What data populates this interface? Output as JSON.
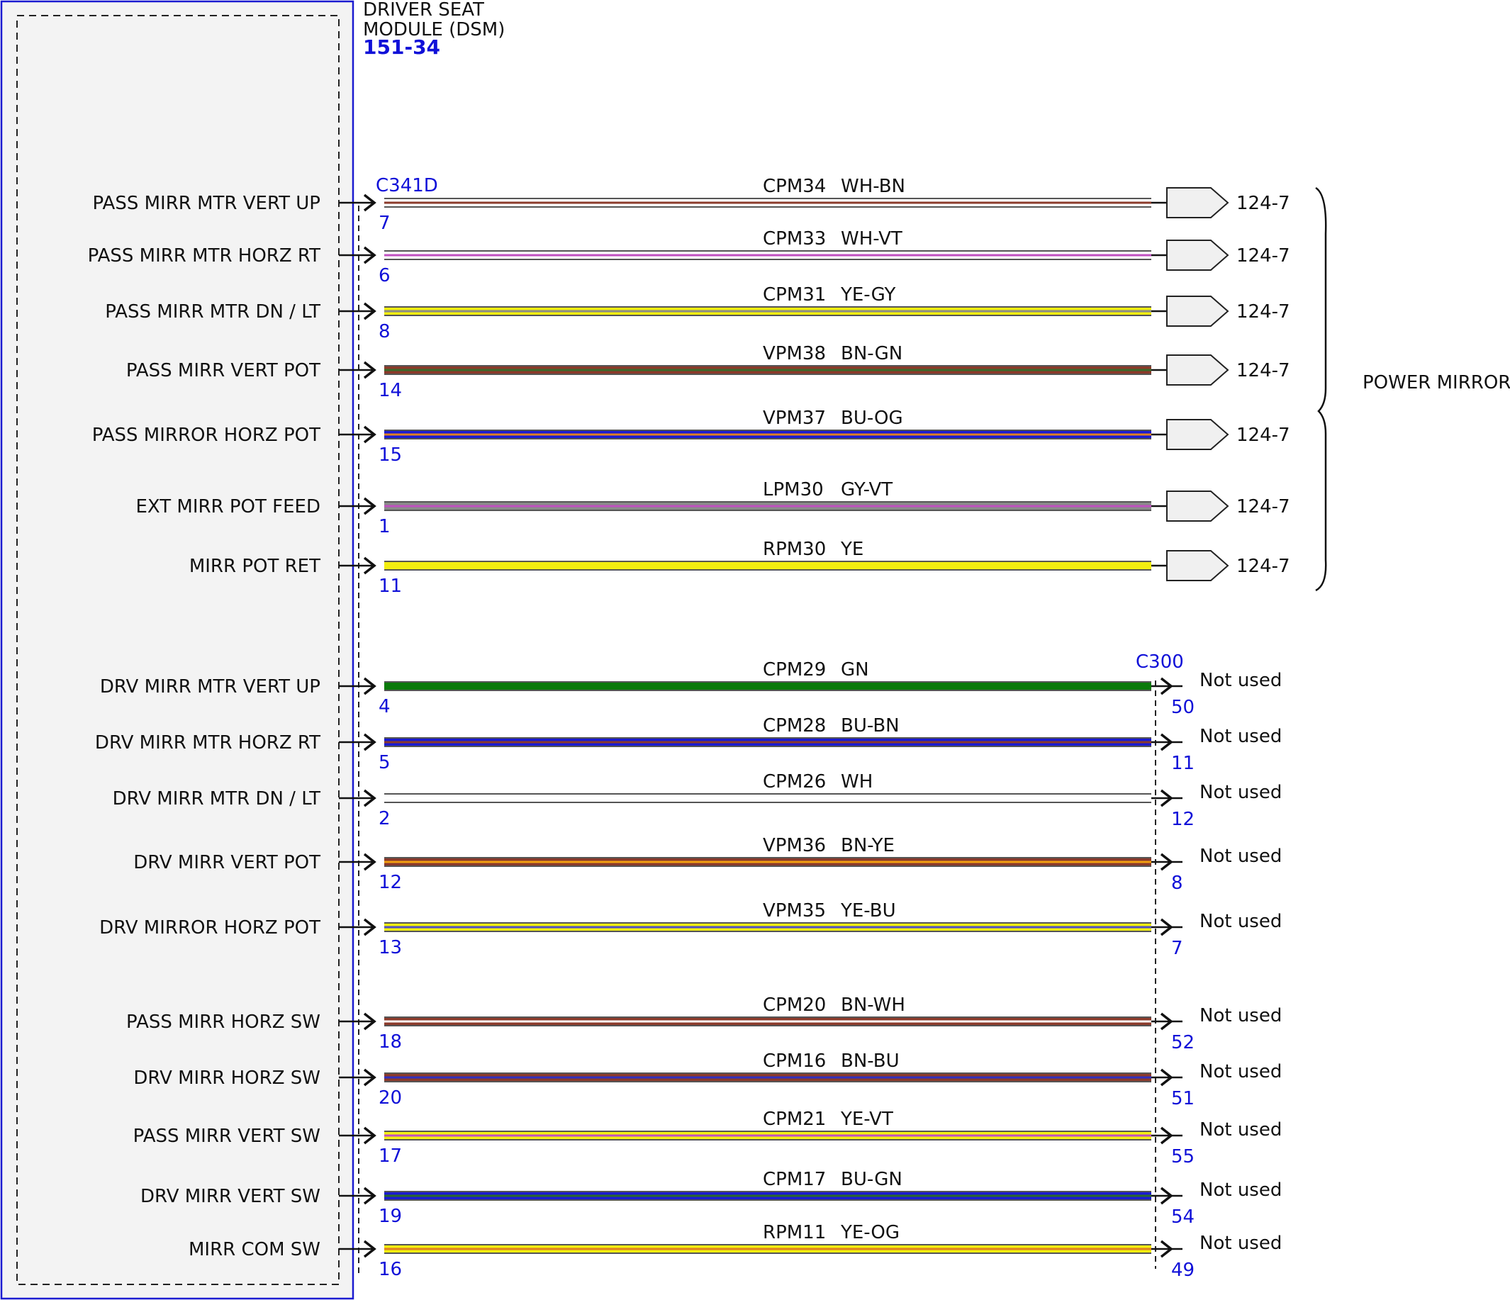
{
  "module": {
    "name_line1": "DRIVER SEAT",
    "name_line2": "MODULE (DSM)",
    "code": "151-34"
  },
  "connectors": {
    "left": "C341D",
    "right": "C300"
  },
  "group_label": "POWER MIRRORS",
  "circuits": [
    {
      "signal": "PASS MIRR MTR VERT UP",
      "circuit": "CPM34",
      "color_code": "WH-BN",
      "pin": "7",
      "base": "#ffffff",
      "stripe": "#8b3a2a",
      "dest": "124-7",
      "far_pin": null
    },
    {
      "signal": "PASS MIRR MTR HORZ RT",
      "circuit": "CPM33",
      "color_code": "WH-VT",
      "pin": "6",
      "base": "#ffffff",
      "stripe": "#c050c0",
      "dest": "124-7",
      "far_pin": null
    },
    {
      "signal": "PASS MIRR MTR DN / LT",
      "circuit": "CPM31",
      "color_code": "YE-GY",
      "pin": "8",
      "base": "#f2ee10",
      "stripe": "#8a8a8a",
      "dest": "124-7",
      "far_pin": null
    },
    {
      "signal": "PASS MIRR VERT POT",
      "circuit": "VPM38",
      "color_code": "BN-GN",
      "pin": "14",
      "base": "#8b3a2a",
      "stripe": "#3a6a2a",
      "dest": "124-7",
      "far_pin": null
    },
    {
      "signal": "PASS MIRROR HORZ POT",
      "circuit": "VPM37",
      "color_code": "BU-OG",
      "pin": "15",
      "base": "#1a1ad0",
      "stripe": "#e08020",
      "dest": "124-7",
      "far_pin": null
    },
    {
      "signal": "EXT MIRR POT FEED",
      "circuit": "LPM30",
      "color_code": "GY-VT",
      "pin": "1",
      "base": "#8a8a8a",
      "stripe": "#c050c0",
      "dest": "124-7",
      "far_pin": null
    },
    {
      "signal": "MIRR POT RET",
      "circuit": "RPM30",
      "color_code": "YE",
      "pin": "11",
      "base": "#f2ee10",
      "stripe": "#f2ee10",
      "dest": "124-7",
      "far_pin": null
    },
    {
      "signal": "DRV MIRR MTR VERT UP",
      "circuit": "CPM29",
      "color_code": "GN",
      "pin": "4",
      "base": "#0a7a0a",
      "stripe": "#0a7a0a",
      "dest": "Not used",
      "far_pin": "50"
    },
    {
      "signal": "DRV MIRR MTR HORZ RT",
      "circuit": "CPM28",
      "color_code": "BU-BN",
      "pin": "5",
      "base": "#1a1ad0",
      "stripe": "#8b3a2a",
      "dest": "Not used",
      "far_pin": "11"
    },
    {
      "signal": "DRV MIRR MTR DN / LT",
      "circuit": "CPM26",
      "color_code": "WH",
      "pin": "2",
      "base": "#ffffff",
      "stripe": "#ffffff",
      "dest": "Not used",
      "far_pin": "12"
    },
    {
      "signal": "DRV MIRR VERT POT",
      "circuit": "VPM36",
      "color_code": "BN-YE",
      "pin": "12",
      "base": "#8b3a2a",
      "stripe": "#f2a010",
      "dest": "Not used",
      "far_pin": "8"
    },
    {
      "signal": "DRV MIRROR HORZ POT",
      "circuit": "VPM35",
      "color_code": "YE-BU",
      "pin": "13",
      "base": "#f2ee10",
      "stripe": "#5050c0",
      "dest": "Not used",
      "far_pin": "7"
    },
    {
      "signal": "PASS MIRR HORZ SW",
      "circuit": "CPM20",
      "color_code": "BN-WH",
      "pin": "18",
      "base": "#8b3a2a",
      "stripe": "#ffffff",
      "dest": "Not used",
      "far_pin": "52"
    },
    {
      "signal": "DRV MIRR HORZ SW",
      "circuit": "CPM16",
      "color_code": "BN-BU",
      "pin": "20",
      "base": "#8b3a2a",
      "stripe": "#3030c0",
      "dest": "Not used",
      "far_pin": "51"
    },
    {
      "signal": "PASS MIRR VERT SW",
      "circuit": "CPM21",
      "color_code": "YE-VT",
      "pin": "17",
      "base": "#f2ee10",
      "stripe": "#c050c0",
      "dest": "Not used",
      "far_pin": "55"
    },
    {
      "signal": "DRV MIRR VERT SW",
      "circuit": "CPM17",
      "color_code": "BU-GN",
      "pin": "19",
      "base": "#1a1ad0",
      "stripe": "#2a6a2a",
      "dest": "Not used",
      "far_pin": "54"
    },
    {
      "signal": "MIRR COM SW",
      "circuit": "RPM11",
      "color_code": "YE-OG",
      "pin": "16",
      "base": "#f2ee10",
      "stripe": "#e08020",
      "dest": "Not used",
      "far_pin": "49"
    }
  ]
}
